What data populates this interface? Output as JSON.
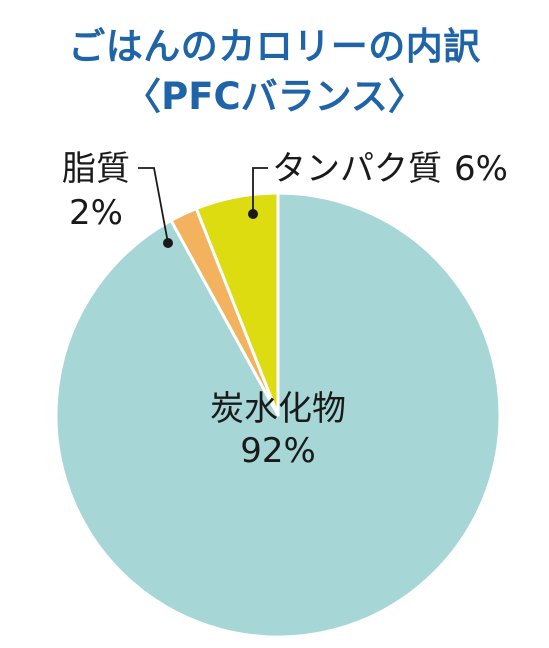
{
  "chart_data": {
    "type": "pie",
    "title": "ごはんのカロリーの内訳",
    "subtitle": "〈PFCバランス〉",
    "slices": [
      {
        "name": "炭水化物",
        "label": "92%",
        "value": 92,
        "color": "#a6d6d5"
      },
      {
        "name": "脂質",
        "label": "2%",
        "value": 2,
        "color": "#f2b25e"
      },
      {
        "name": "タンパク質",
        "label": "6%",
        "value": 6,
        "color": "#dcdc10"
      }
    ],
    "legend": "none"
  }
}
